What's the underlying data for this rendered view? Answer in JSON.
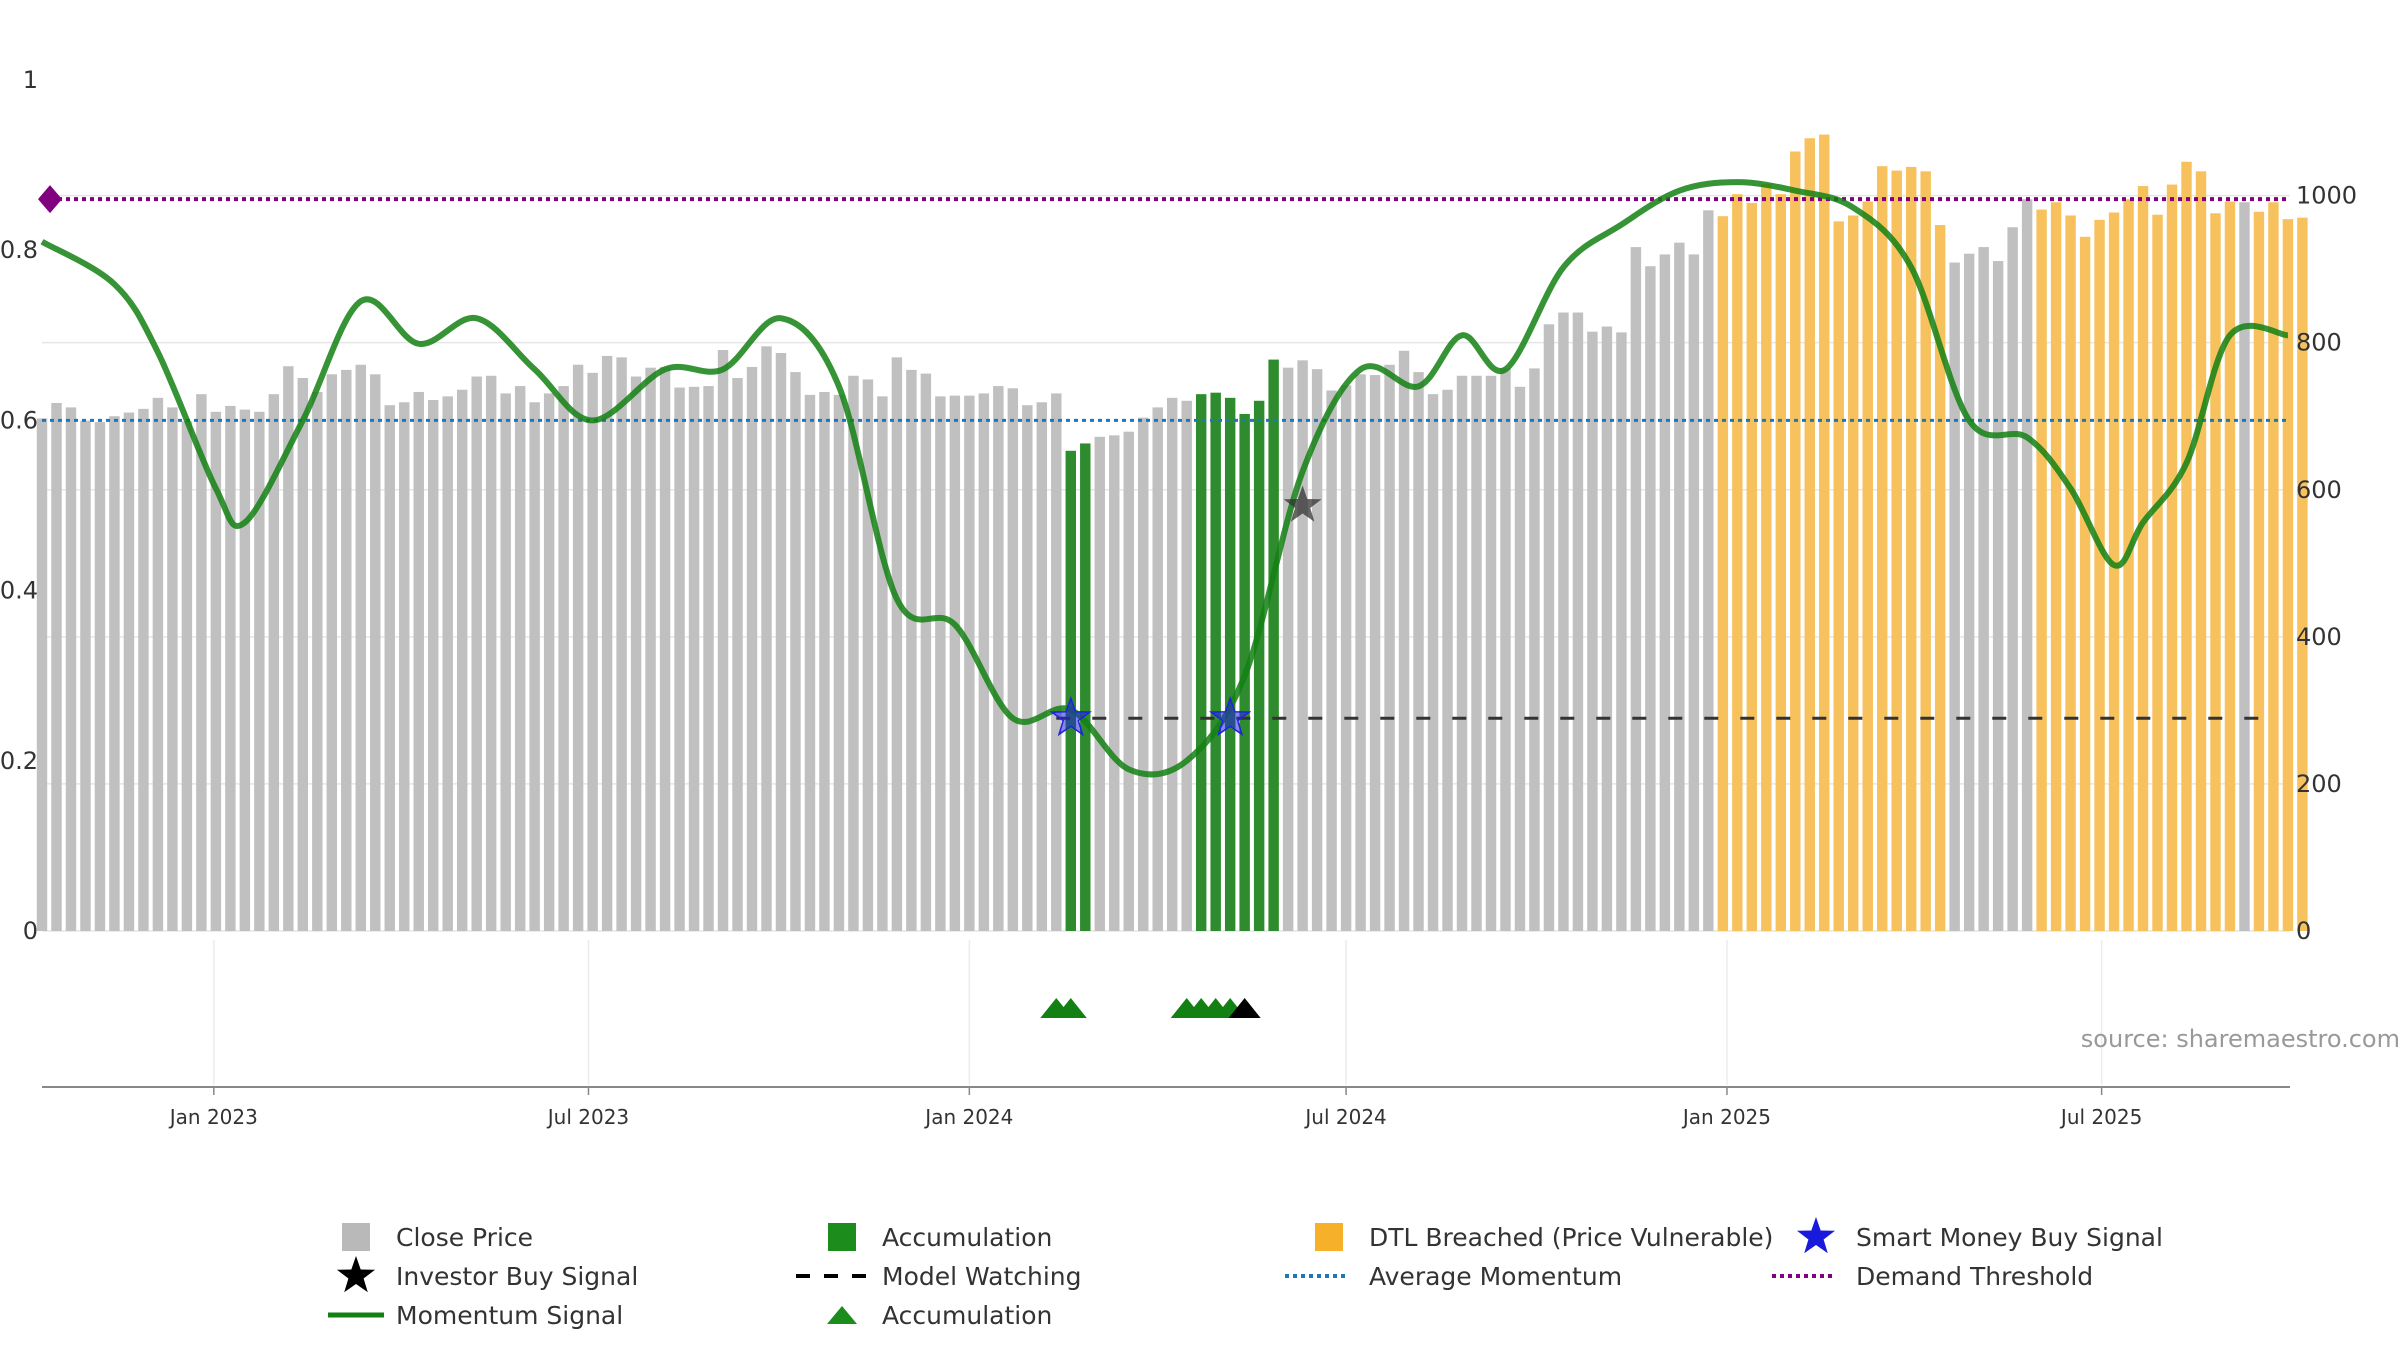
{
  "chart_data": {
    "type": "bar",
    "title": "",
    "source": "source: sharemaestro.com",
    "x_ticks": [
      "Jan 2023",
      "Jul 2023",
      "Jan 2024",
      "Jul 2024",
      "Jan 2025",
      "Jul 2025"
    ],
    "x_tick_dates": [
      "2023-01-01",
      "2023-07-01",
      "2024-01-01",
      "2024-07-01",
      "2025-01-01",
      "2025-07-01"
    ],
    "x_range": [
      "2022-10-10",
      "2025-09-30"
    ],
    "y_left": {
      "ticks": [
        "0",
        "0.2",
        "0.4",
        "0.6",
        "0.8",
        "1"
      ],
      "range": [
        0,
        1
      ]
    },
    "y_right": {
      "ticks": [
        "0",
        "200",
        "400",
        "600",
        "800",
        "1000"
      ],
      "range": [
        0,
        1130
      ]
    },
    "grid": true,
    "legend_position": "bottom",
    "colors": {
      "close_price": "#c0c0c0",
      "accumulation": "#2e8b2e",
      "dtl_breached": "#f7c25e",
      "momentum": "#138013",
      "average_momentum": "#1f77b4",
      "demand_threshold": "#800080",
      "model_watching": "#333333",
      "smart_money": "#2222dd",
      "investor_buy": "#333333"
    },
    "legend": [
      {
        "label": "Close Price",
        "symbol": "square",
        "color": "#b9b9b9"
      },
      {
        "label": "Accumulation",
        "symbol": "square",
        "color": "#1c8c1c"
      },
      {
        "label": "DTL Breached (Price Vulnerable)",
        "symbol": "square",
        "color": "#f7b02a"
      },
      {
        "label": "Smart Money Buy Signal",
        "symbol": "star",
        "color": "#1a1add"
      },
      {
        "label": "Investor Buy Signal",
        "symbol": "star",
        "color": "#000000"
      },
      {
        "label": "Model Watching",
        "symbol": "dash",
        "color": "#000000"
      },
      {
        "label": "Average Momentum",
        "symbol": "dot",
        "color": "#1f77b4"
      },
      {
        "label": "Demand Threshold",
        "symbol": "dot",
        "color": "#800080"
      },
      {
        "label": "Momentum Signal",
        "symbol": "line",
        "color": "#138013"
      },
      {
        "label": "Accumulation",
        "symbol": "triangle",
        "color": "#1c8c1c"
      }
    ],
    "weekly_close": {
      "start_date": "2022-10-10",
      "interval_days": 7,
      "values": [
        697,
        718,
        712,
        694,
        692,
        700,
        705,
        710,
        725,
        712,
        693,
        730,
        706,
        714,
        709,
        706,
        730,
        768,
        752,
        733,
        757,
        763,
        770,
        757,
        715,
        719,
        733,
        722,
        727,
        736,
        754,
        755,
        731,
        741,
        719,
        731,
        741,
        770,
        759,
        782,
        780,
        754,
        766,
        767,
        739,
        740,
        741,
        790,
        752,
        767,
        795,
        786,
        760,
        729,
        733,
        729,
        755,
        750,
        727,
        780,
        763,
        758,
        727,
        728,
        728,
        731,
        741,
        738,
        715,
        719,
        731,
        653,
        663,
        672,
        674,
        679,
        698,
        712,
        725,
        721,
        730,
        732,
        725,
        703,
        721,
        777,
        766,
        776,
        764,
        735,
        742,
        757,
        756,
        770,
        789,
        760,
        730,
        736,
        755,
        755,
        755,
        765,
        740,
        765,
        825,
        841,
        841,
        815,
        822,
        814,
        930,
        904,
        920,
        936,
        920,
        980,
        972,
        1002,
        990,
        1016,
        1002,
        1060,
        1078,
        1083,
        965,
        973,
        992,
        1040,
        1034,
        1039,
        1033,
        960,
        909,
        921,
        930,
        911,
        957,
        995,
        981,
        991,
        973,
        944,
        967,
        977,
        995,
        1013,
        974,
        1015,
        1046,
        1033,
        976,
        992,
        991,
        978,
        991,
        968,
        970
      ],
      "y_axis": "right"
    },
    "accumulation_weeks": [
      71,
      72,
      80,
      81,
      82,
      83,
      84,
      85
    ],
    "dtl_breached_weeks": {
      "from": [
        116,
        138
      ],
      "to": [
        131,
        156
      ],
      "excluded": [
        152
      ]
    },
    "momentum_signal": {
      "x": [
        "2022-10-10",
        "2022-11-14",
        "2022-12-05",
        "2023-01-02",
        "2023-01-16",
        "2023-02-13",
        "2023-03-13",
        "2023-04-10",
        "2023-05-08",
        "2023-06-05",
        "2023-07-03",
        "2023-08-07",
        "2023-09-04",
        "2023-10-02",
        "2023-10-30",
        "2023-11-27",
        "2023-12-25",
        "2024-01-22",
        "2024-02-19",
        "2024-03-18",
        "2024-04-15",
        "2024-05-13",
        "2024-06-10",
        "2024-07-08",
        "2024-08-05",
        "2024-08-26",
        "2024-09-16",
        "2024-10-14",
        "2024-11-11",
        "2024-12-09",
        "2025-01-06",
        "2025-02-03",
        "2025-03-03",
        "2025-03-31",
        "2025-04-28",
        "2025-05-26",
        "2025-06-16",
        "2025-07-07",
        "2025-07-21",
        "2025-08-11",
        "2025-09-01",
        "2025-09-29"
      ],
      "y": [
        0.81,
        0.76,
        0.68,
        0.52,
        0.48,
        0.6,
        0.74,
        0.69,
        0.72,
        0.66,
        0.6,
        0.66,
        0.66,
        0.72,
        0.64,
        0.39,
        0.36,
        0.25,
        0.26,
        0.19,
        0.2,
        0.3,
        0.54,
        0.66,
        0.64,
        0.7,
        0.66,
        0.78,
        0.83,
        0.87,
        0.88,
        0.87,
        0.85,
        0.78,
        0.6,
        0.58,
        0.52,
        0.43,
        0.48,
        0.55,
        0.7,
        0.7
      ],
      "y_axis": "left"
    },
    "average_momentum": 0.6,
    "demand_threshold": 0.86,
    "model_watching": {
      "from": "2024-02-12",
      "to": "2025-09-22",
      "value": 0.25
    },
    "smart_money_buy_signals": [
      {
        "date": "2024-02-19",
        "value": 0.25
      },
      {
        "date": "2024-05-06",
        "value": 0.25
      }
    ],
    "investor_buy_signals": [
      {
        "date": "2024-06-10",
        "value": 0.5
      }
    ],
    "accumulation_markers": [
      {
        "date": "2024-02-12",
        "color": "#138013"
      },
      {
        "date": "2024-02-19",
        "color": "#138013"
      },
      {
        "date": "2024-04-15",
        "color": "#138013"
      },
      {
        "date": "2024-04-22",
        "color": "#138013"
      },
      {
        "date": "2024-04-29",
        "color": "#138013"
      },
      {
        "date": "2024-05-06",
        "color": "#138013"
      },
      {
        "date": "2024-05-13",
        "color": "#000000"
      }
    ]
  }
}
